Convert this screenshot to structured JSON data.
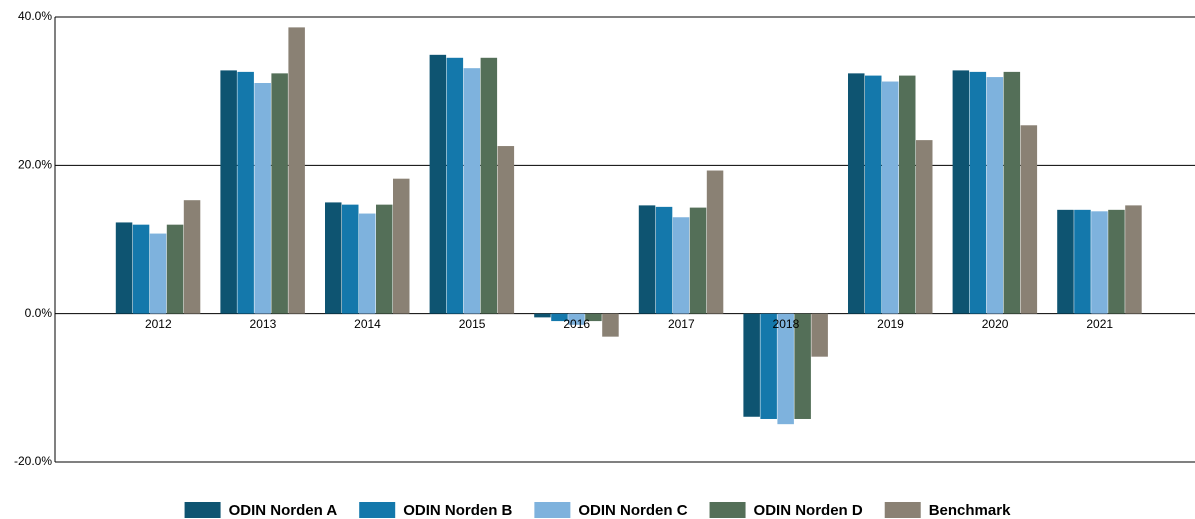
{
  "chart_data": {
    "type": "bar",
    "categories": [
      "2012",
      "2013",
      "2014",
      "2015",
      "2016",
      "2017",
      "2018",
      "2019",
      "2020",
      "2021"
    ],
    "series": [
      {
        "name": "ODIN Norden A",
        "color": "#0e5471",
        "values": [
          12.3,
          32.8,
          15.0,
          34.9,
          -0.5,
          14.6,
          -13.9,
          32.4,
          32.8,
          14.0
        ]
      },
      {
        "name": "ODIN Norden B",
        "color": "#1478ab",
        "values": [
          12.0,
          32.6,
          14.7,
          34.5,
          -1.0,
          14.4,
          -14.2,
          32.1,
          32.6,
          14.0
        ]
      },
      {
        "name": "ODIN Norden C",
        "color": "#7eb2dd",
        "values": [
          10.8,
          31.1,
          13.5,
          33.1,
          -1.5,
          13.0,
          -14.9,
          31.3,
          31.9,
          13.8
        ]
      },
      {
        "name": "ODIN Norden D",
        "color": "#546f58",
        "values": [
          12.0,
          32.4,
          14.7,
          34.5,
          -1.0,
          14.3,
          -14.2,
          32.1,
          32.6,
          14.0
        ]
      },
      {
        "name": "Benchmark",
        "color": "#8a8174",
        "values": [
          15.3,
          38.6,
          18.2,
          22.6,
          -3.1,
          19.3,
          -5.8,
          23.4,
          25.4,
          14.6
        ]
      }
    ],
    "ylim": [
      -20,
      40
    ],
    "yticks": [
      {
        "value": -20,
        "label": "-20.0%"
      },
      {
        "value": 0,
        "label": "0.0%"
      },
      {
        "value": 20,
        "label": "20.0%"
      },
      {
        "value": 40,
        "label": "40.0%"
      }
    ],
    "grid": true,
    "legend": "bottom"
  }
}
